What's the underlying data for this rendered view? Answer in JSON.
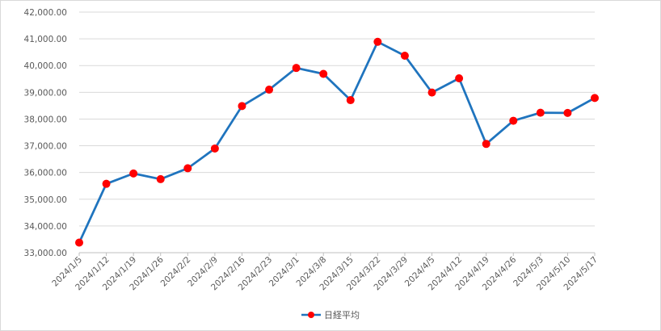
{
  "chart_data": {
    "type": "line",
    "title": "",
    "xlabel": "",
    "ylabel": "",
    "categories": [
      "2024/1/5",
      "2024/1/12",
      "2024/1/19",
      "2024/1/26",
      "2024/2/2",
      "2024/2/9",
      "2024/2/16",
      "2024/2/23",
      "2024/3/1",
      "2024/3/8",
      "2024/3/15",
      "2024/3/22",
      "2024/3/29",
      "2024/4/5",
      "2024/4/12",
      "2024/4/19",
      "2024/4/26",
      "2024/5/3",
      "2024/5/10",
      "2024/5/17"
    ],
    "series": [
      {
        "name": "日経平均",
        "color": "#1f74be",
        "marker_color": "#ff0000",
        "values": [
          33377,
          35577,
          35963,
          35751,
          36158,
          36897,
          38487,
          39099,
          39911,
          39689,
          38707,
          40889,
          40369,
          38992,
          39524,
          37068,
          37935,
          38236,
          38229,
          38787
        ]
      }
    ],
    "ylim": [
      33000,
      42000
    ],
    "yticks": [
      "33,000.00",
      "34,000.00",
      "35,000.00",
      "36,000.00",
      "37,000.00",
      "38,000.00",
      "39,000.00",
      "40,000.00",
      "41,000.00",
      "42,000.00"
    ],
    "grid": true,
    "legend": "bottom"
  }
}
